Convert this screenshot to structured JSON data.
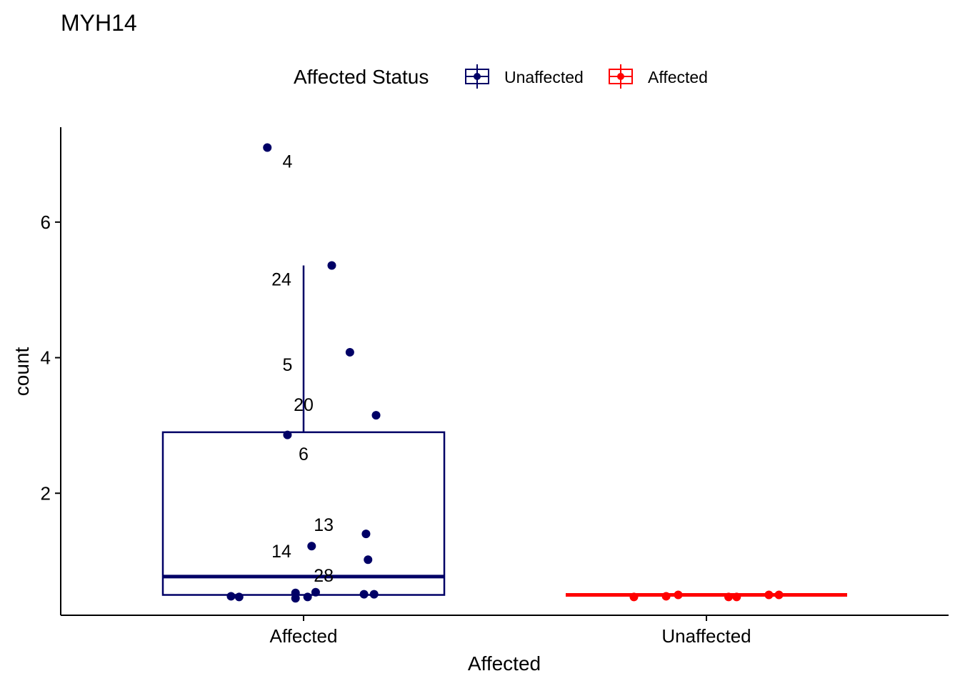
{
  "chart_data": {
    "type": "box",
    "title": "MYH14",
    "xlabel": "Affected",
    "ylabel": "count",
    "categories": [
      "Affected",
      "Unaffected"
    ],
    "y_ticks": [
      2,
      4,
      6
    ],
    "y_range": [
      0.2,
      7.4
    ],
    "legend": {
      "title": "Affected Status",
      "position": "top",
      "entries": [
        {
          "label": "Unaffected",
          "color": "#000066"
        },
        {
          "label": "Affected",
          "color": "#ff0000"
        }
      ]
    },
    "boxes": [
      {
        "category": "Affected",
        "color": "#000066",
        "q1": 0.5,
        "median": 0.77,
        "q3": 2.9,
        "whisker_low": 0.5,
        "whisker_high": 5.36
      },
      {
        "category": "Unaffected",
        "color": "#ff0000",
        "q1": 0.5,
        "median": 0.5,
        "q3": 0.5,
        "whisker_low": 0.5,
        "whisker_high": 0.5
      }
    ],
    "points": [
      {
        "category": "Affected",
        "offset": -0.09,
        "y": 7.1
      },
      {
        "category": "Affected",
        "offset": 0.07,
        "y": 5.36
      },
      {
        "category": "Affected",
        "offset": 0.115,
        "y": 4.08
      },
      {
        "category": "Affected",
        "offset": 0.18,
        "y": 3.15
      },
      {
        "category": "Affected",
        "offset": -0.04,
        "y": 2.86
      },
      {
        "category": "Affected",
        "offset": 0.155,
        "y": 1.4
      },
      {
        "category": "Affected",
        "offset": 0.02,
        "y": 1.22
      },
      {
        "category": "Affected",
        "offset": 0.16,
        "y": 1.02
      },
      {
        "category": "Affected",
        "offset": -0.18,
        "y": 0.48
      },
      {
        "category": "Affected",
        "offset": -0.16,
        "y": 0.47
      },
      {
        "category": "Affected",
        "offset": -0.02,
        "y": 0.53
      },
      {
        "category": "Affected",
        "offset": -0.02,
        "y": 0.45
      },
      {
        "category": "Affected",
        "offset": 0.01,
        "y": 0.47
      },
      {
        "category": "Affected",
        "offset": 0.03,
        "y": 0.54
      },
      {
        "category": "Affected",
        "offset": 0.15,
        "y": 0.51
      },
      {
        "category": "Affected",
        "offset": 0.175,
        "y": 0.51
      },
      {
        "category": "Unaffected",
        "offset": -0.18,
        "y": 0.47
      },
      {
        "category": "Unaffected",
        "offset": -0.1,
        "y": 0.48
      },
      {
        "category": "Unaffected",
        "offset": -0.07,
        "y": 0.5
      },
      {
        "category": "Unaffected",
        "offset": 0.055,
        "y": 0.47
      },
      {
        "category": "Unaffected",
        "offset": 0.075,
        "y": 0.47
      },
      {
        "category": "Unaffected",
        "offset": 0.155,
        "y": 0.5
      },
      {
        "category": "Unaffected",
        "offset": 0.18,
        "y": 0.5
      }
    ],
    "point_labels": [
      {
        "text": "4",
        "category": "Affected",
        "offset": -0.04,
        "y": 6.9
      },
      {
        "text": "24",
        "category": "Affected",
        "offset": -0.055,
        "y": 5.16
      },
      {
        "text": "5",
        "category": "Affected",
        "offset": -0.04,
        "y": 3.9
      },
      {
        "text": "20",
        "category": "Affected",
        "offset": 0.0,
        "y": 3.31
      },
      {
        "text": "6",
        "category": "Affected",
        "offset": 0.0,
        "y": 2.58
      },
      {
        "text": "13",
        "category": "Affected",
        "offset": 0.05,
        "y": 1.54
      },
      {
        "text": "14",
        "category": "Affected",
        "offset": -0.055,
        "y": 1.15
      },
      {
        "text": "28",
        "category": "Affected",
        "offset": 0.05,
        "y": 0.79
      }
    ]
  }
}
